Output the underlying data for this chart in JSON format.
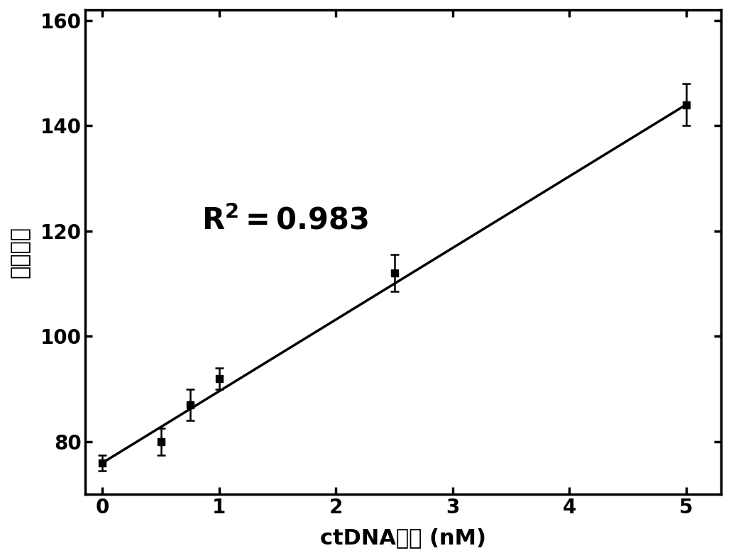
{
  "x_data": [
    0,
    0.5,
    0.75,
    1.0,
    2.5,
    5.0
  ],
  "y_data": [
    76,
    80,
    87,
    92,
    112,
    144
  ],
  "y_err": [
    1.5,
    2.5,
    3.0,
    2.0,
    3.5,
    4.0
  ],
  "fit_x": [
    0,
    5
  ],
  "fit_slope": 13.6,
  "fit_intercept": 76.0,
  "r2_x": 0.85,
  "r2_y": 122,
  "xlabel": "ctDNA浓度 (nM)",
  "ylabel": "荧光强度",
  "xlim": [
    -0.15,
    5.3
  ],
  "ylim": [
    70,
    162
  ],
  "xticks": [
    0,
    1,
    2,
    3,
    4,
    5
  ],
  "yticks": [
    80,
    100,
    120,
    140,
    160
  ],
  "background_color": "#ffffff",
  "line_color": "#000000",
  "marker_color": "#000000",
  "marker_size": 7,
  "linewidth": 2.5,
  "errorbar_capsize": 4,
  "errorbar_linewidth": 1.8
}
